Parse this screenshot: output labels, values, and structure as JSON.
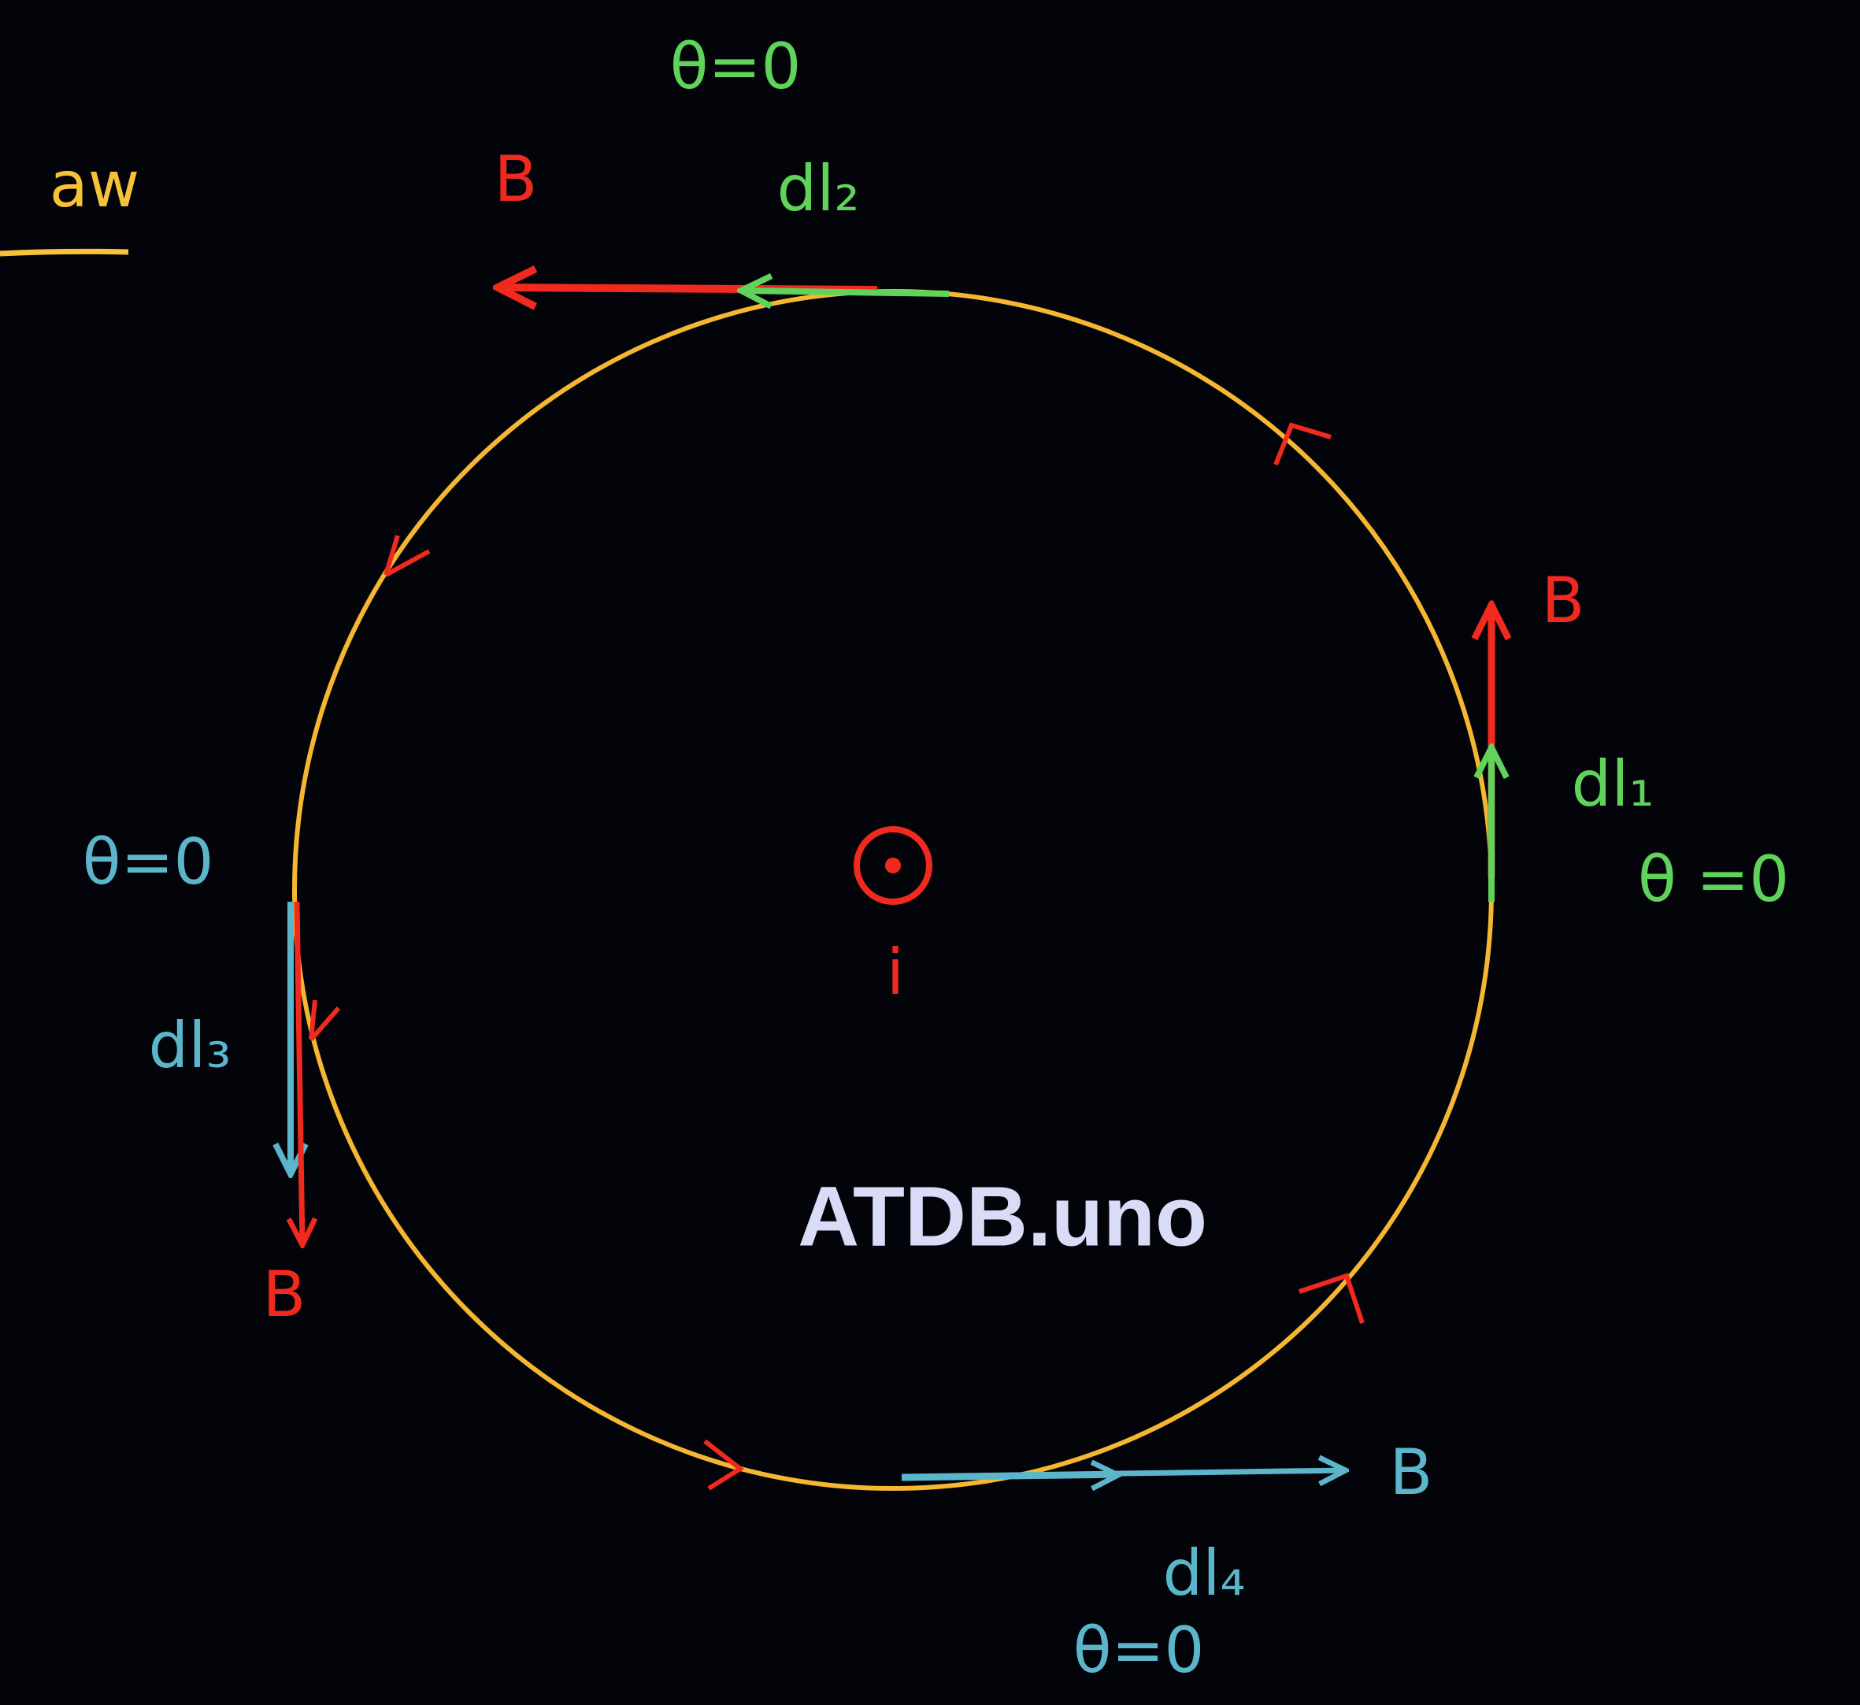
{
  "header": {
    "title": "aw"
  },
  "center": {
    "label": "i"
  },
  "top": {
    "theta": "θ=0",
    "field": "B",
    "element": "dl₂"
  },
  "right": {
    "theta": "θ =0",
    "field": "B",
    "element": "dl₁"
  },
  "left": {
    "theta": "θ=0",
    "field": "B",
    "element": "dl₃"
  },
  "bottom": {
    "theta": "θ=0",
    "field": "B",
    "element": "dl₄"
  },
  "watermark": "ATDB.uno"
}
